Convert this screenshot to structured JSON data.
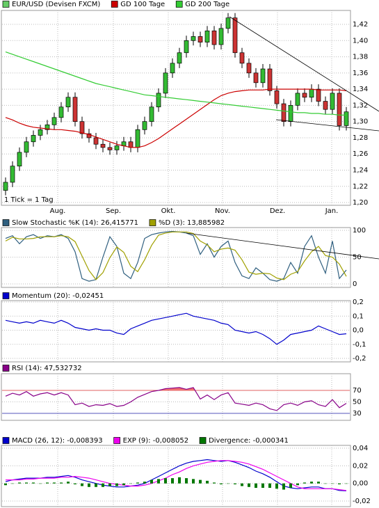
{
  "chart_data": [
    {
      "type": "candlestick",
      "title": "EUR/USD (Devisen FXCM)",
      "color": "#66cc66",
      "annotation": "1 Tick = 1 Tag",
      "up_color": "#33bb33",
      "down_color": "#cc3333",
      "xlim": [
        0,
        50
      ],
      "xticks": [
        {
          "value": 8,
          "label": "Aug."
        },
        {
          "value": 16,
          "label": "Sep."
        },
        {
          "value": 23.9,
          "label": "Okt."
        },
        {
          "value": 31.7,
          "label": "Nov."
        },
        {
          "value": 39.6,
          "label": "Dez."
        },
        {
          "value": 47.4,
          "label": "Jan."
        }
      ],
      "ylim": [
        1.1966,
        1.4372
      ],
      "yticks": [
        {
          "value": 1.2,
          "label": "1,20"
        },
        {
          "value": 1.22,
          "label": "1,22"
        },
        {
          "value": 1.24,
          "label": "1,24"
        },
        {
          "value": 1.26,
          "label": "1,26"
        },
        {
          "value": 1.28,
          "label": "1,28"
        },
        {
          "value": 1.3,
          "label": "1,30"
        },
        {
          "value": 1.32,
          "label": "1,32"
        },
        {
          "value": 1.34,
          "label": "1,34"
        },
        {
          "value": 1.36,
          "label": "1,36"
        },
        {
          "value": 1.38,
          "label": "1,38"
        },
        {
          "value": 1.4,
          "label": "1,40"
        },
        {
          "value": 1.42,
          "label": "1,42"
        }
      ],
      "grid": true,
      "open": [
        1.215,
        1.225,
        1.245,
        1.262,
        1.275,
        1.283,
        1.29,
        1.296,
        1.305,
        1.318,
        1.33,
        1.3,
        1.285,
        1.28,
        1.272,
        1.268,
        1.265,
        1.27,
        1.275,
        1.268,
        1.29,
        1.3,
        1.318,
        1.335,
        1.36,
        1.372,
        1.385,
        1.4,
        1.405,
        1.398,
        1.412,
        1.395,
        1.415,
        1.428,
        1.385,
        1.372,
        1.36,
        1.348,
        1.365,
        1.338,
        1.322,
        1.3,
        1.32,
        1.335,
        1.33,
        1.34,
        1.325,
        1.315,
        1.335,
        1.295
      ],
      "high": [
        1.231,
        1.251,
        1.268,
        1.281,
        1.289,
        1.296,
        1.302,
        1.311,
        1.324,
        1.336,
        1.336,
        1.306,
        1.291,
        1.286,
        1.278,
        1.274,
        1.276,
        1.281,
        1.281,
        1.296,
        1.306,
        1.324,
        1.341,
        1.366,
        1.378,
        1.391,
        1.406,
        1.411,
        1.411,
        1.418,
        1.418,
        1.421,
        1.434,
        1.434,
        1.391,
        1.378,
        1.366,
        1.371,
        1.371,
        1.344,
        1.328,
        1.326,
        1.341,
        1.341,
        1.346,
        1.346,
        1.331,
        1.341,
        1.341,
        1.318
      ],
      "low": [
        1.209,
        1.219,
        1.239,
        1.256,
        1.269,
        1.277,
        1.284,
        1.29,
        1.299,
        1.312,
        1.294,
        1.279,
        1.274,
        1.266,
        1.262,
        1.259,
        1.259,
        1.264,
        1.262,
        1.262,
        1.284,
        1.294,
        1.312,
        1.329,
        1.354,
        1.366,
        1.379,
        1.394,
        1.392,
        1.392,
        1.389,
        1.389,
        1.409,
        1.379,
        1.366,
        1.354,
        1.342,
        1.342,
        1.332,
        1.316,
        1.294,
        1.294,
        1.314,
        1.324,
        1.324,
        1.319,
        1.309,
        1.309,
        1.289,
        1.289
      ],
      "close": [
        1.225,
        1.245,
        1.262,
        1.275,
        1.283,
        1.29,
        1.296,
        1.305,
        1.318,
        1.33,
        1.3,
        1.285,
        1.28,
        1.272,
        1.268,
        1.265,
        1.27,
        1.275,
        1.268,
        1.29,
        1.3,
        1.318,
        1.335,
        1.36,
        1.372,
        1.385,
        1.4,
        1.405,
        1.398,
        1.412,
        1.395,
        1.415,
        1.428,
        1.385,
        1.372,
        1.36,
        1.348,
        1.365,
        1.338,
        1.322,
        1.3,
        1.32,
        1.335,
        1.33,
        1.34,
        1.325,
        1.315,
        1.335,
        1.295,
        1.312
      ],
      "series": [
        {
          "name": "GD 100 Tage",
          "color": "#cc0000",
          "values": [
            1.305,
            1.302,
            1.298,
            1.295,
            1.293,
            1.292,
            1.291,
            1.29,
            1.29,
            1.289,
            1.288,
            1.286,
            1.284,
            1.281,
            1.278,
            1.275,
            1.272,
            1.27,
            1.268,
            1.268,
            1.27,
            1.274,
            1.279,
            1.285,
            1.291,
            1.297,
            1.303,
            1.309,
            1.315,
            1.321,
            1.327,
            1.332,
            1.335,
            1.337,
            1.338,
            1.339,
            1.339,
            1.339,
            1.34,
            1.34,
            1.34,
            1.34,
            1.34,
            1.34,
            1.34,
            1.339,
            1.339,
            1.339,
            1.339,
            1.338
          ]
        },
        {
          "name": "GD 200 Tage",
          "color": "#33cc33",
          "values": [
            1.386,
            1.383,
            1.38,
            1.377,
            1.374,
            1.371,
            1.368,
            1.365,
            1.362,
            1.359,
            1.356,
            1.353,
            1.35,
            1.347,
            1.345,
            1.343,
            1.341,
            1.339,
            1.337,
            1.335,
            1.333,
            1.332,
            1.331,
            1.33,
            1.329,
            1.328,
            1.327,
            1.326,
            1.325,
            1.324,
            1.323,
            1.322,
            1.321,
            1.32,
            1.319,
            1.318,
            1.317,
            1.316,
            1.315,
            1.314,
            1.313,
            1.312,
            1.311,
            1.311,
            1.31,
            1.31,
            1.309,
            1.309,
            1.308,
            1.308
          ]
        }
      ]
    },
    {
      "type": "line",
      "ylim": [
        -6.5,
        105.2
      ],
      "yticks": [
        0,
        50,
        100
      ],
      "grid": true,
      "series": [
        {
          "name": "Slow Stochastic %K (14): 26,415771",
          "color": "#2f5f7f",
          "values": [
            85,
            90,
            75,
            88,
            92,
            85,
            90,
            88,
            92,
            85,
            60,
            10,
            5,
            8,
            50,
            88,
            70,
            20,
            10,
            40,
            85,
            92,
            95,
            97,
            98,
            97,
            95,
            90,
            55,
            75,
            50,
            70,
            80,
            40,
            15,
            10,
            30,
            20,
            8,
            5,
            10,
            40,
            20,
            70,
            90,
            50,
            20,
            80,
            10,
            26
          ]
        },
        {
          "name": "%D (3): 13,885982",
          "color": "#a0a000",
          "values": [
            80,
            87,
            84,
            84,
            85,
            88,
            88,
            88,
            90,
            88,
            79,
            52,
            25,
            8,
            21,
            49,
            69,
            59,
            33,
            23,
            45,
            72,
            91,
            95,
            97,
            97,
            97,
            94,
            80,
            73,
            60,
            65,
            67,
            63,
            45,
            22,
            18,
            20,
            19,
            11,
            8,
            18,
            23,
            43,
            60,
            70,
            53,
            50,
            37,
            14
          ]
        }
      ]
    },
    {
      "type": "line",
      "ylim": [
        -0.2247,
        0.2099
      ],
      "grid": true,
      "yticks": [
        {
          "value": -0.2,
          "label": "-0,2"
        },
        {
          "value": -0.1,
          "label": "-0,1"
        },
        {
          "value": 0,
          "label": "0,0"
        },
        {
          "value": 0.1,
          "label": "0,1"
        },
        {
          "value": 0.2,
          "label": "0,2"
        }
      ],
      "series": [
        {
          "name": "Momentum (20): -0,02451",
          "color": "#0000cc",
          "values": [
            0.07,
            0.06,
            0.05,
            0.06,
            0.05,
            0.07,
            0.06,
            0.05,
            0.07,
            0.05,
            0.02,
            0.01,
            0.0,
            0.01,
            0.0,
            0.0,
            -0.02,
            -0.03,
            0.01,
            0.03,
            0.05,
            0.07,
            0.08,
            0.09,
            0.1,
            0.11,
            0.12,
            0.1,
            0.09,
            0.08,
            0.07,
            0.05,
            0.04,
            0.0,
            -0.01,
            -0.02,
            -0.01,
            -0.03,
            -0.06,
            -0.1,
            -0.07,
            -0.03,
            -0.02,
            -0.01,
            0.0,
            0.03,
            0.01,
            -0.01,
            -0.03,
            -0.025
          ]
        }
      ]
    },
    {
      "type": "line",
      "ylim": [
        17.9,
        99.1
      ],
      "yticks": [
        30,
        50,
        70
      ],
      "grid": true,
      "bands": [
        {
          "value": 70,
          "color": "#e06060",
          "fill": "#f07070"
        },
        {
          "value": 30,
          "color": "#5555bb"
        }
      ],
      "series": [
        {
          "name": "RSI (14): 47,532732",
          "color": "#880088",
          "values": [
            60,
            65,
            62,
            68,
            60,
            64,
            66,
            62,
            66,
            62,
            45,
            48,
            42,
            45,
            44,
            47,
            42,
            44,
            50,
            58,
            63,
            68,
            70,
            73,
            74,
            75,
            72,
            75,
            55,
            62,
            54,
            62,
            66,
            48,
            46,
            44,
            48,
            45,
            38,
            35,
            45,
            48,
            44,
            50,
            52,
            45,
            42,
            54,
            40,
            47.5
          ]
        }
      ]
    },
    {
      "type": "line",
      "ylim": [
        -0.0263,
        0.0432
      ],
      "grid": true,
      "yticks": [
        {
          "value": -0.02,
          "label": "-0,02"
        },
        {
          "value": 0,
          "label": "0,00"
        },
        {
          "value": 0.02,
          "label": "0,02"
        },
        {
          "value": 0.04,
          "label": "0,04"
        }
      ],
      "series": [
        {
          "name": "MACD (26, 12): -0,008393",
          "color": "#0000cc",
          "values": [
            0.002,
            0.004,
            0.005,
            0.006,
            0.006,
            0.006,
            0.007,
            0.007,
            0.008,
            0.009,
            0.007,
            0.004,
            0.002,
            0.0,
            -0.002,
            -0.003,
            -0.004,
            -0.004,
            -0.003,
            -0.002,
            0.0,
            0.004,
            0.008,
            0.012,
            0.016,
            0.02,
            0.023,
            0.025,
            0.026,
            0.027,
            0.026,
            0.025,
            0.026,
            0.024,
            0.021,
            0.018,
            0.014,
            0.011,
            0.007,
            0.002,
            -0.003,
            -0.005,
            -0.006,
            -0.005,
            -0.004,
            -0.004,
            -0.006,
            -0.006,
            -0.008,
            -0.0084
          ]
        },
        {
          "name": "EXP (9): -0,008052",
          "color": "#ee00ee",
          "values": [
            0.004,
            0.004,
            0.004,
            0.005,
            0.005,
            0.006,
            0.006,
            0.006,
            0.007,
            0.007,
            0.008,
            0.007,
            0.006,
            0.004,
            0.002,
            0.0,
            -0.001,
            -0.002,
            -0.003,
            -0.003,
            -0.002,
            0.0,
            0.003,
            0.006,
            0.01,
            0.013,
            0.017,
            0.02,
            0.022,
            0.024,
            0.025,
            0.026,
            0.026,
            0.025,
            0.024,
            0.022,
            0.019,
            0.016,
            0.012,
            0.008,
            0.004,
            0.0,
            -0.004,
            -0.006,
            -0.006,
            -0.006,
            -0.006,
            -0.006,
            -0.007,
            -0.008
          ]
        },
        {
          "name": "Divergence: -0,000341",
          "color": "#007700",
          "type": "bar",
          "values": [
            -0.002,
            0.0,
            0.001,
            0.001,
            0.001,
            0.0,
            0.001,
            0.001,
            0.001,
            0.002,
            -0.001,
            -0.003,
            -0.004,
            -0.004,
            -0.004,
            -0.003,
            -0.003,
            -0.002,
            0.0,
            0.001,
            0.002,
            0.004,
            0.005,
            0.006,
            0.006,
            0.007,
            0.006,
            0.005,
            0.004,
            0.003,
            0.001,
            -0.001,
            0.0,
            -0.001,
            -0.003,
            -0.004,
            -0.005,
            -0.005,
            -0.005,
            -0.006,
            -0.007,
            -0.005,
            -0.002,
            0.001,
            0.002,
            0.002,
            0.0,
            0.0,
            -0.001,
            -0.0003
          ]
        }
      ]
    }
  ]
}
